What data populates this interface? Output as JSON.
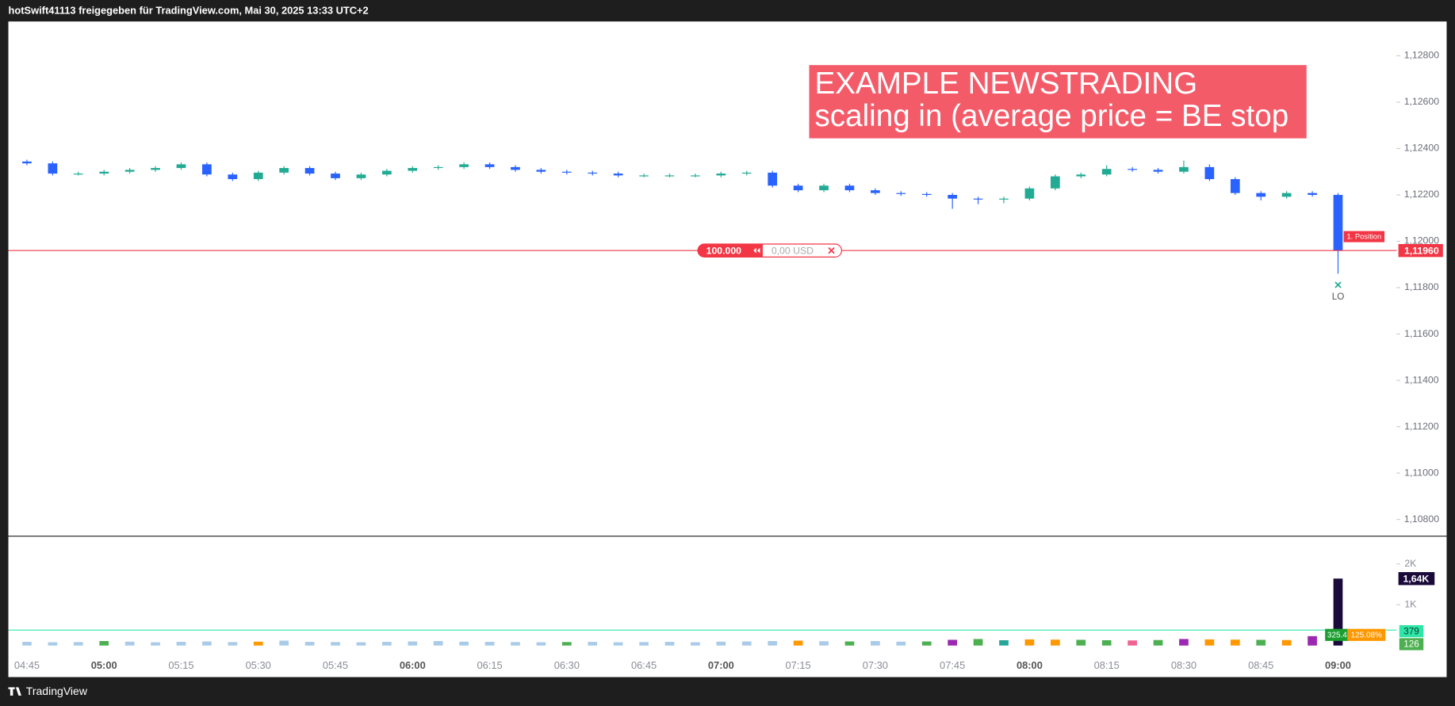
{
  "header": "hotSwift41113 freigegeben für TradingView.com, Mai 30, 2025 13:33 UTC+2",
  "footer": "TradingView",
  "chart_data": {
    "type": "candlestick",
    "annotation": [
      "EXAMPLE NEWSTRADING",
      "scaling in (average price = BE stop"
    ],
    "up_color": "#22ab94",
    "down_color": "#2962ff",
    "x": [
      "04:45",
      "04:50",
      "04:55",
      "05:00",
      "05:05",
      "05:10",
      "05:15",
      "05:20",
      "05:25",
      "05:30",
      "05:35",
      "05:40",
      "05:45",
      "05:50",
      "05:55",
      "06:00",
      "06:05",
      "06:10",
      "06:15",
      "06:20",
      "06:25",
      "06:30",
      "06:35",
      "06:40",
      "06:45",
      "06:50",
      "06:55",
      "07:00",
      "07:05",
      "07:10",
      "07:15",
      "07:20",
      "07:25",
      "07:30",
      "07:35",
      "07:40",
      "07:45",
      "07:50",
      "07:55",
      "08:00",
      "08:05",
      "08:10",
      "08:15",
      "08:20",
      "08:25",
      "08:30",
      "08:35",
      "08:40",
      "08:45",
      "08:50",
      "08:55",
      "09:00"
    ],
    "open": [
      1.12344,
      1.12336,
      1.12292,
      1.12292,
      1.123,
      1.12308,
      1.12316,
      1.12332,
      1.12288,
      1.12268,
      1.12296,
      1.12316,
      1.12292,
      1.12272,
      1.12288,
      1.12304,
      1.12316,
      1.1232,
      1.12332,
      1.1232,
      1.12308,
      1.123,
      1.12296,
      1.12292,
      1.12284,
      1.12284,
      1.12284,
      1.12284,
      1.12292,
      1.12296,
      1.1224,
      1.1222,
      1.1224,
      1.1222,
      1.12208,
      1.12204,
      1.122,
      1.12184,
      1.1218,
      1.12184,
      1.12228,
      1.1228,
      1.12288,
      1.12312,
      1.12308,
      1.123,
      1.1232,
      1.12268,
      1.12208,
      1.12192,
      1.12208,
      1.122
    ],
    "high": [
      1.12352,
      1.12344,
      1.123,
      1.12308,
      1.12316,
      1.12324,
      1.1234,
      1.1234,
      1.12296,
      1.12304,
      1.12324,
      1.12324,
      1.123,
      1.12296,
      1.12312,
      1.12324,
      1.12328,
      1.1234,
      1.1234,
      1.12328,
      1.12316,
      1.12308,
      1.12304,
      1.123,
      1.12292,
      1.12292,
      1.12292,
      1.123,
      1.12304,
      1.12304,
      1.12248,
      1.12248,
      1.12248,
      1.12228,
      1.12216,
      1.12212,
      1.12208,
      1.12192,
      1.12192,
      1.12236,
      1.12288,
      1.12296,
      1.12328,
      1.1232,
      1.12316,
      1.12348,
      1.12332,
      1.12276,
      1.12216,
      1.12216,
      1.12216,
      1.12208
    ],
    "low": [
      1.12328,
      1.12284,
      1.12284,
      1.12284,
      1.12292,
      1.123,
      1.12308,
      1.1228,
      1.1226,
      1.1226,
      1.12288,
      1.12284,
      1.12264,
      1.12264,
      1.1228,
      1.12296,
      1.12308,
      1.12312,
      1.12312,
      1.123,
      1.12292,
      1.12288,
      1.12284,
      1.12276,
      1.12276,
      1.12276,
      1.12276,
      1.12276,
      1.12284,
      1.12232,
      1.12212,
      1.12212,
      1.12212,
      1.122,
      1.12196,
      1.12192,
      1.1214,
      1.1216,
      1.12164,
      1.12176,
      1.1222,
      1.12272,
      1.1228,
      1.123,
      1.12292,
      1.12292,
      1.1226,
      1.122,
      1.12176,
      1.12184,
      1.12192,
      1.1186
    ],
    "close": [
      1.12336,
      1.12292,
      1.12292,
      1.123,
      1.12308,
      1.12316,
      1.12332,
      1.12288,
      1.12268,
      1.12296,
      1.12316,
      1.12292,
      1.12272,
      1.12288,
      1.12304,
      1.12316,
      1.1232,
      1.12332,
      1.1232,
      1.12308,
      1.123,
      1.12296,
      1.12292,
      1.12284,
      1.12284,
      1.12284,
      1.12284,
      1.12292,
      1.12296,
      1.1224,
      1.1222,
      1.1224,
      1.1222,
      1.12208,
      1.12204,
      1.122,
      1.12184,
      1.1218,
      1.12184,
      1.12228,
      1.1228,
      1.12288,
      1.12312,
      1.12308,
      1.123,
      1.1232,
      1.12268,
      1.12208,
      1.12192,
      1.12208,
      1.122,
      1.1196
    ],
    "ylim": [
      1.10728,
      1.12948
    ],
    "yticks": [
      {
        "value": 1.128,
        "label": "1,12800"
      },
      {
        "value": 1.126,
        "label": "1,12600"
      },
      {
        "value": 1.124,
        "label": "1,12400"
      },
      {
        "value": 1.122,
        "label": "1,12200"
      },
      {
        "value": 1.12,
        "label": "1,12000"
      },
      {
        "value": 1.118,
        "label": "1,11800"
      },
      {
        "value": 1.116,
        "label": "1,11600"
      },
      {
        "value": 1.114,
        "label": "1,11400"
      },
      {
        "value": 1.112,
        "label": "1,11200"
      },
      {
        "value": 1.11,
        "label": "1,11000"
      },
      {
        "value": 1.108,
        "label": "1,10800"
      }
    ],
    "xticks": [
      "04:45",
      "05:00",
      "05:15",
      "05:30",
      "05:45",
      "06:00",
      "06:15",
      "06:30",
      "06:45",
      "07:00",
      "07:15",
      "07:30",
      "07:45",
      "08:00",
      "08:15",
      "08:30",
      "08:45",
      "09:00"
    ],
    "position": {
      "quantity": "100.000",
      "pnl": "0,00 USD",
      "name": "1. Position",
      "price": {
        "value": 1.1196,
        "label": "1,11960"
      },
      "color": "#f23645"
    },
    "order_marker": "LO",
    "volume": {
      "values": [
        90,
        80,
        85,
        110,
        95,
        80,
        90,
        100,
        85,
        95,
        120,
        90,
        85,
        80,
        90,
        100,
        110,
        95,
        90,
        85,
        80,
        85,
        90,
        80,
        85,
        90,
        80,
        95,
        100,
        110,
        120,
        105,
        100,
        110,
        95,
        100,
        140,
        160,
        130,
        150,
        145,
        140,
        130,
        125,
        135,
        160,
        150,
        145,
        140,
        135,
        230,
        1640
      ],
      "colors": [
        "#a9cbe8",
        "#a9cbe8",
        "#a9cbe8",
        "#4caf50",
        "#a9cbe8",
        "#a9cbe8",
        "#a9cbe8",
        "#a9cbe8",
        "#a9cbe8",
        "#ff9800",
        "#a9cbe8",
        "#a9cbe8",
        "#a9cbe8",
        "#a9cbe8",
        "#a9cbe8",
        "#a9cbe8",
        "#a9cbe8",
        "#a9cbe8",
        "#a9cbe8",
        "#a9cbe8",
        "#a9cbe8",
        "#4caf50",
        "#a9cbe8",
        "#a9cbe8",
        "#a9cbe8",
        "#a9cbe8",
        "#a9cbe8",
        "#a9cbe8",
        "#a9cbe8",
        "#a9cbe8",
        "#ff9800",
        "#a9cbe8",
        "#4caf50",
        "#a9cbe8",
        "#a9cbe8",
        "#4caf50",
        "#9c27b0",
        "#4caf50",
        "#26a69a",
        "#ff9800",
        "#ff9800",
        "#4caf50",
        "#4caf50",
        "#f06292",
        "#4caf50",
        "#9c27b0",
        "#ff9800",
        "#ff9800",
        "#4caf50",
        "#ff9800",
        "#9c27b0",
        "#1a0a3a"
      ],
      "ylim": [
        -205,
        2680
      ],
      "yticks": [
        {
          "value": 1000,
          "label": "1K"
        },
        {
          "value": 2000,
          "label": "2K"
        }
      ],
      "current": {
        "value": 1640,
        "label": "1,64K"
      },
      "levels": [
        379,
        126
      ],
      "level_colors": [
        "#2ee6a8",
        "#4caf50"
      ],
      "indicator_labels": [
        "325.4",
        "125.08%"
      ],
      "indicator_colors": [
        "#1b9e2f",
        "#ff9800"
      ]
    }
  }
}
